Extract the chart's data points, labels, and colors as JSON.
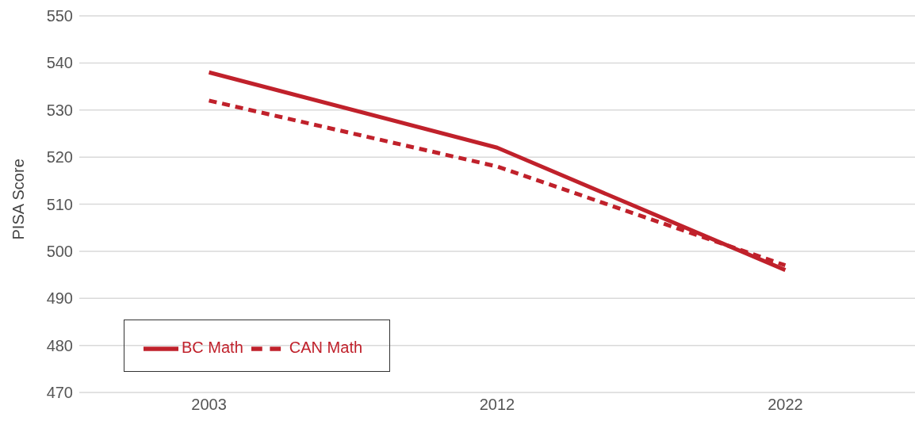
{
  "chart_data": {
    "type": "line",
    "ylabel": "PISA Score",
    "categories": [
      "2003",
      "2012",
      "2022"
    ],
    "series": [
      {
        "name": "BC Math",
        "color": "#c0212b",
        "values": [
          538,
          522,
          496
        ],
        "line_style": "solid"
      },
      {
        "name": "CAN Math",
        "color": "#c0212b",
        "values": [
          532,
          518,
          497
        ],
        "line_style": "dashed"
      }
    ],
    "ylim": [
      470,
      550
    ],
    "yticks": [
      470,
      480,
      490,
      500,
      510,
      520,
      530,
      540,
      550
    ],
    "grid": "y",
    "legend": "bottom left",
    "marker": "none"
  }
}
